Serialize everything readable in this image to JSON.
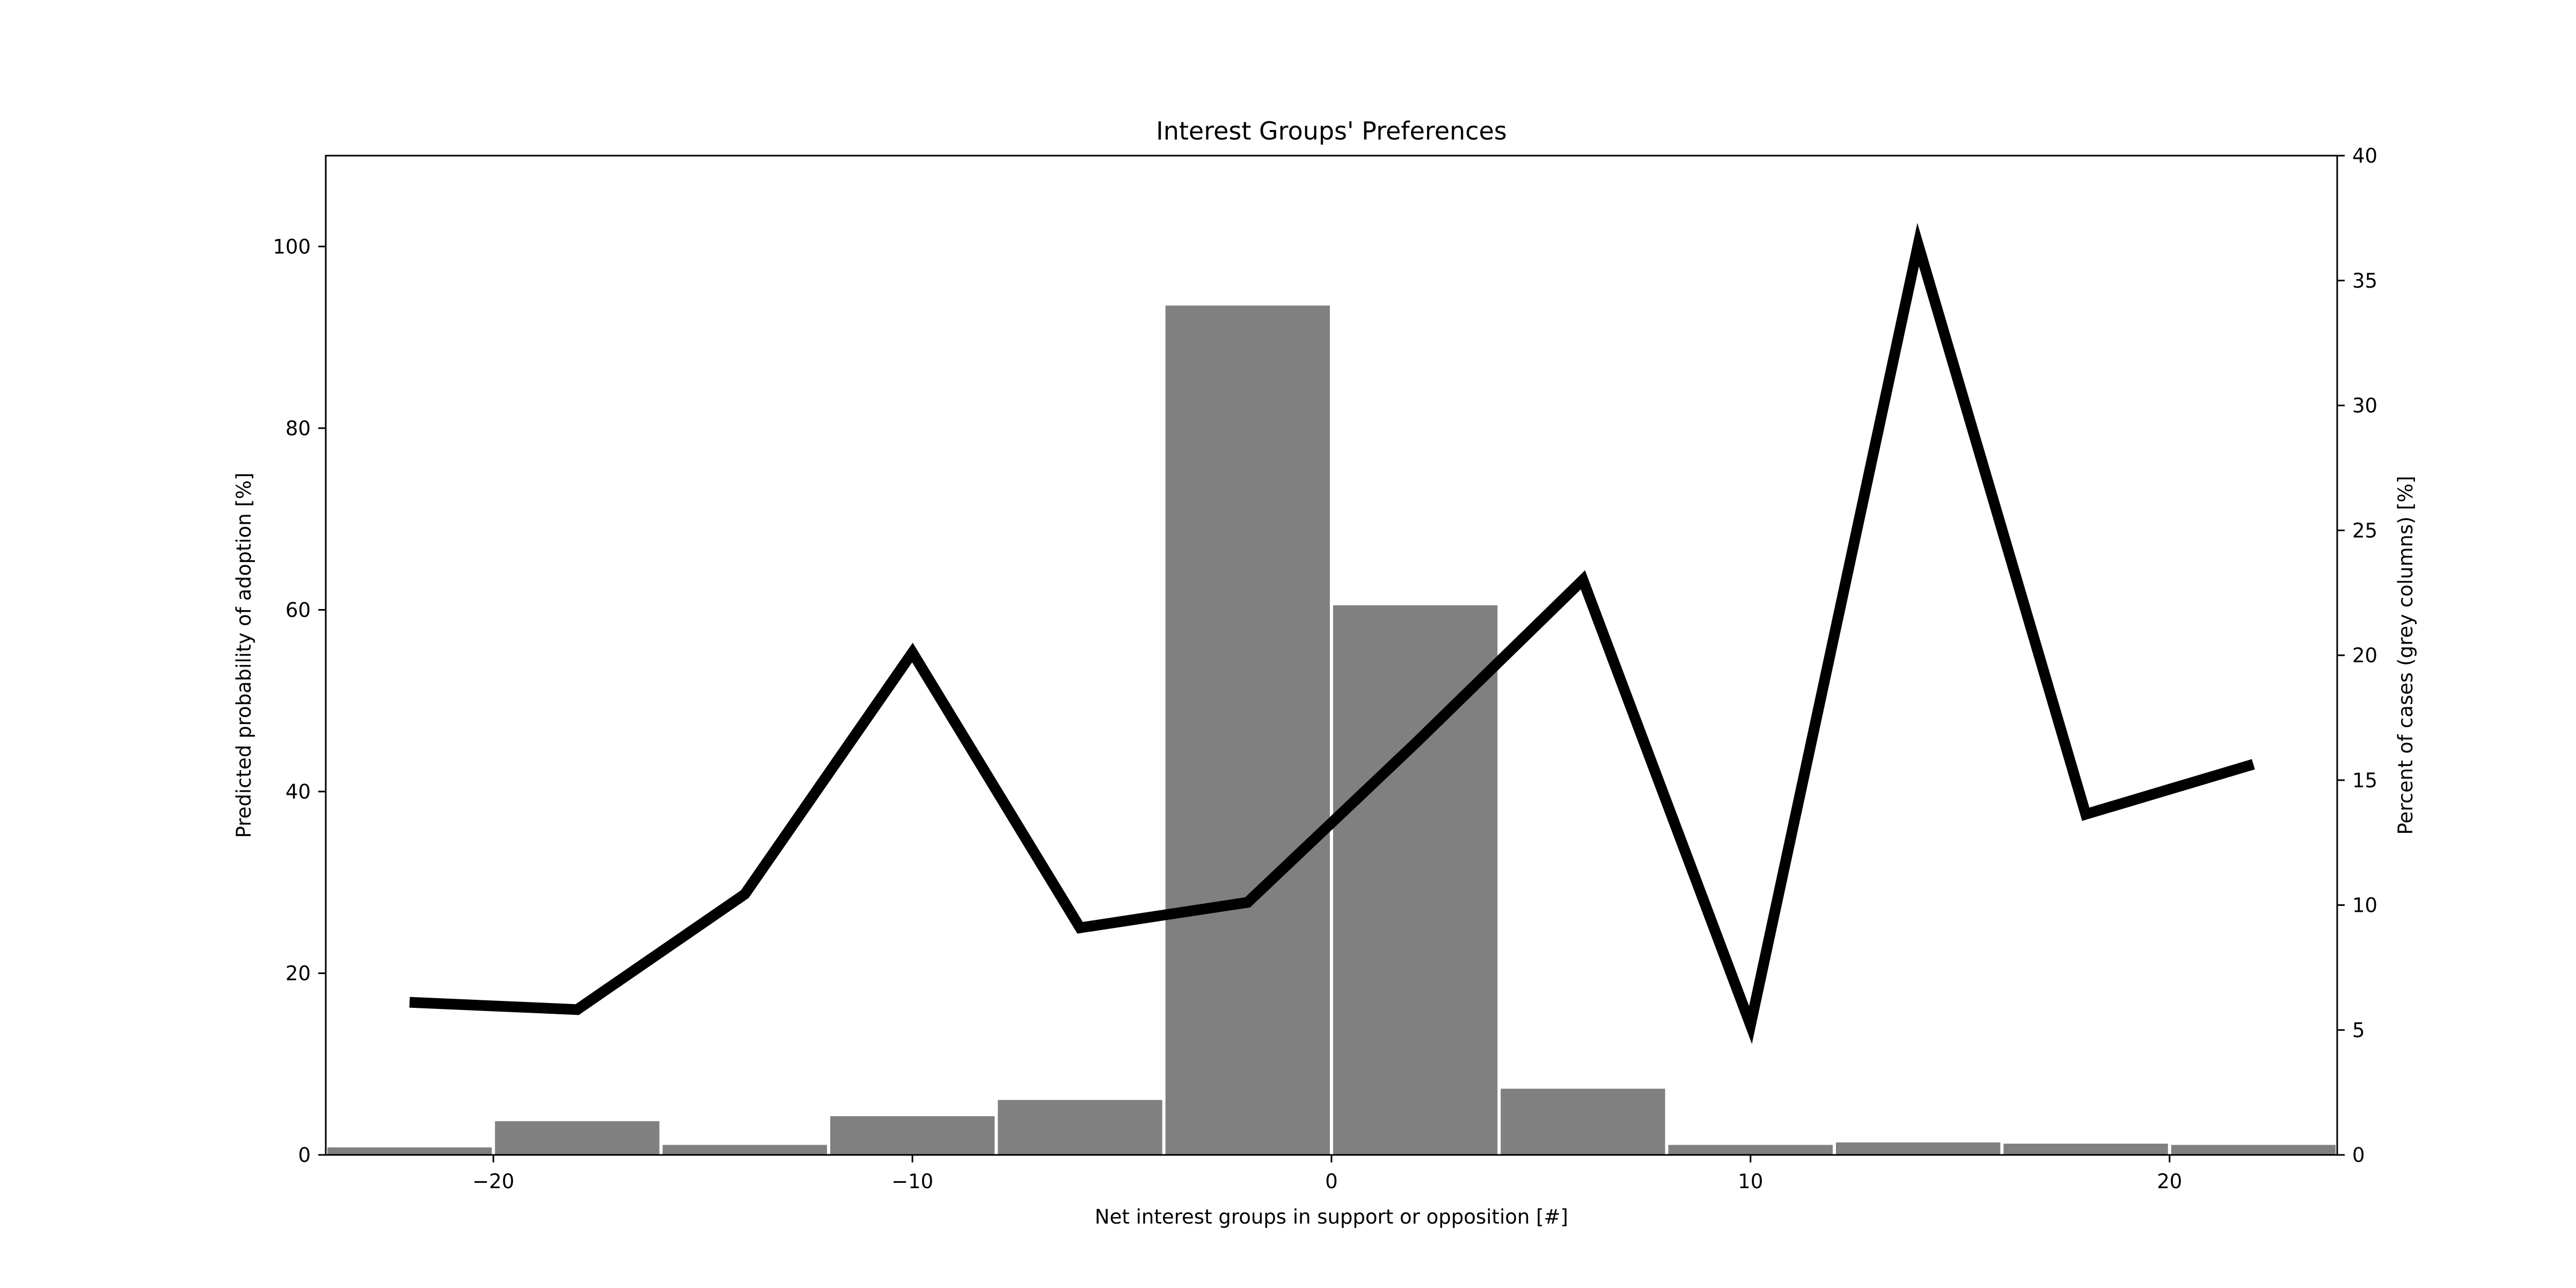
{
  "chart_data": {
    "type": "bar",
    "title": "Interest Groups' Preferences",
    "xlabel": "Net interest groups in support or opposition [#]",
    "ylabel": "Predicted probability of adoption [%]",
    "y2label": "Percent of cases (grey columns) [%]",
    "xlim": [
      -24,
      24
    ],
    "ylim": [
      0,
      110
    ],
    "y2lim": [
      0,
      40
    ],
    "xticks": [
      -20,
      -10,
      0,
      10,
      20
    ],
    "xtick_labels": [
      "−20",
      "−10",
      "0",
      "10",
      "20"
    ],
    "yticks": [
      0,
      20,
      40,
      60,
      80,
      100
    ],
    "y2ticks": [
      0,
      5,
      10,
      15,
      20,
      25,
      30,
      35,
      40
    ],
    "grid": false,
    "bar_series": {
      "axis": "right",
      "color": "#808080",
      "bin_width": 4,
      "bins": [
        {
          "x": -22,
          "value": 0.3
        },
        {
          "x": -18,
          "value": 1.35
        },
        {
          "x": -14,
          "value": 0.4
        },
        {
          "x": -10,
          "value": 1.55
        },
        {
          "x": -6,
          "value": 2.2
        },
        {
          "x": -2,
          "value": 34.0
        },
        {
          "x": 2,
          "value": 22.0
        },
        {
          "x": 6,
          "value": 2.65
        },
        {
          "x": 10,
          "value": 0.4
        },
        {
          "x": 14,
          "value": 0.5
        },
        {
          "x": 18,
          "value": 0.45
        },
        {
          "x": 22,
          "value": 0.4
        }
      ]
    },
    "line_series": {
      "axis": "left",
      "color": "#000000",
      "points": [
        {
          "x": -22,
          "y": 16.8
        },
        {
          "x": -18,
          "y": 16.0
        },
        {
          "x": -14,
          "y": 28.7
        },
        {
          "x": -10,
          "y": 55.3
        },
        {
          "x": -6,
          "y": 25.0
        },
        {
          "x": -2,
          "y": 27.8
        },
        {
          "x": 2,
          "y": 45.3
        },
        {
          "x": 6,
          "y": 63.3
        },
        {
          "x": 10,
          "y": 14.3
        },
        {
          "x": 14,
          "y": 100.2
        },
        {
          "x": 18,
          "y": 37.5
        },
        {
          "x": 22,
          "y": 43.0
        }
      ]
    }
  }
}
